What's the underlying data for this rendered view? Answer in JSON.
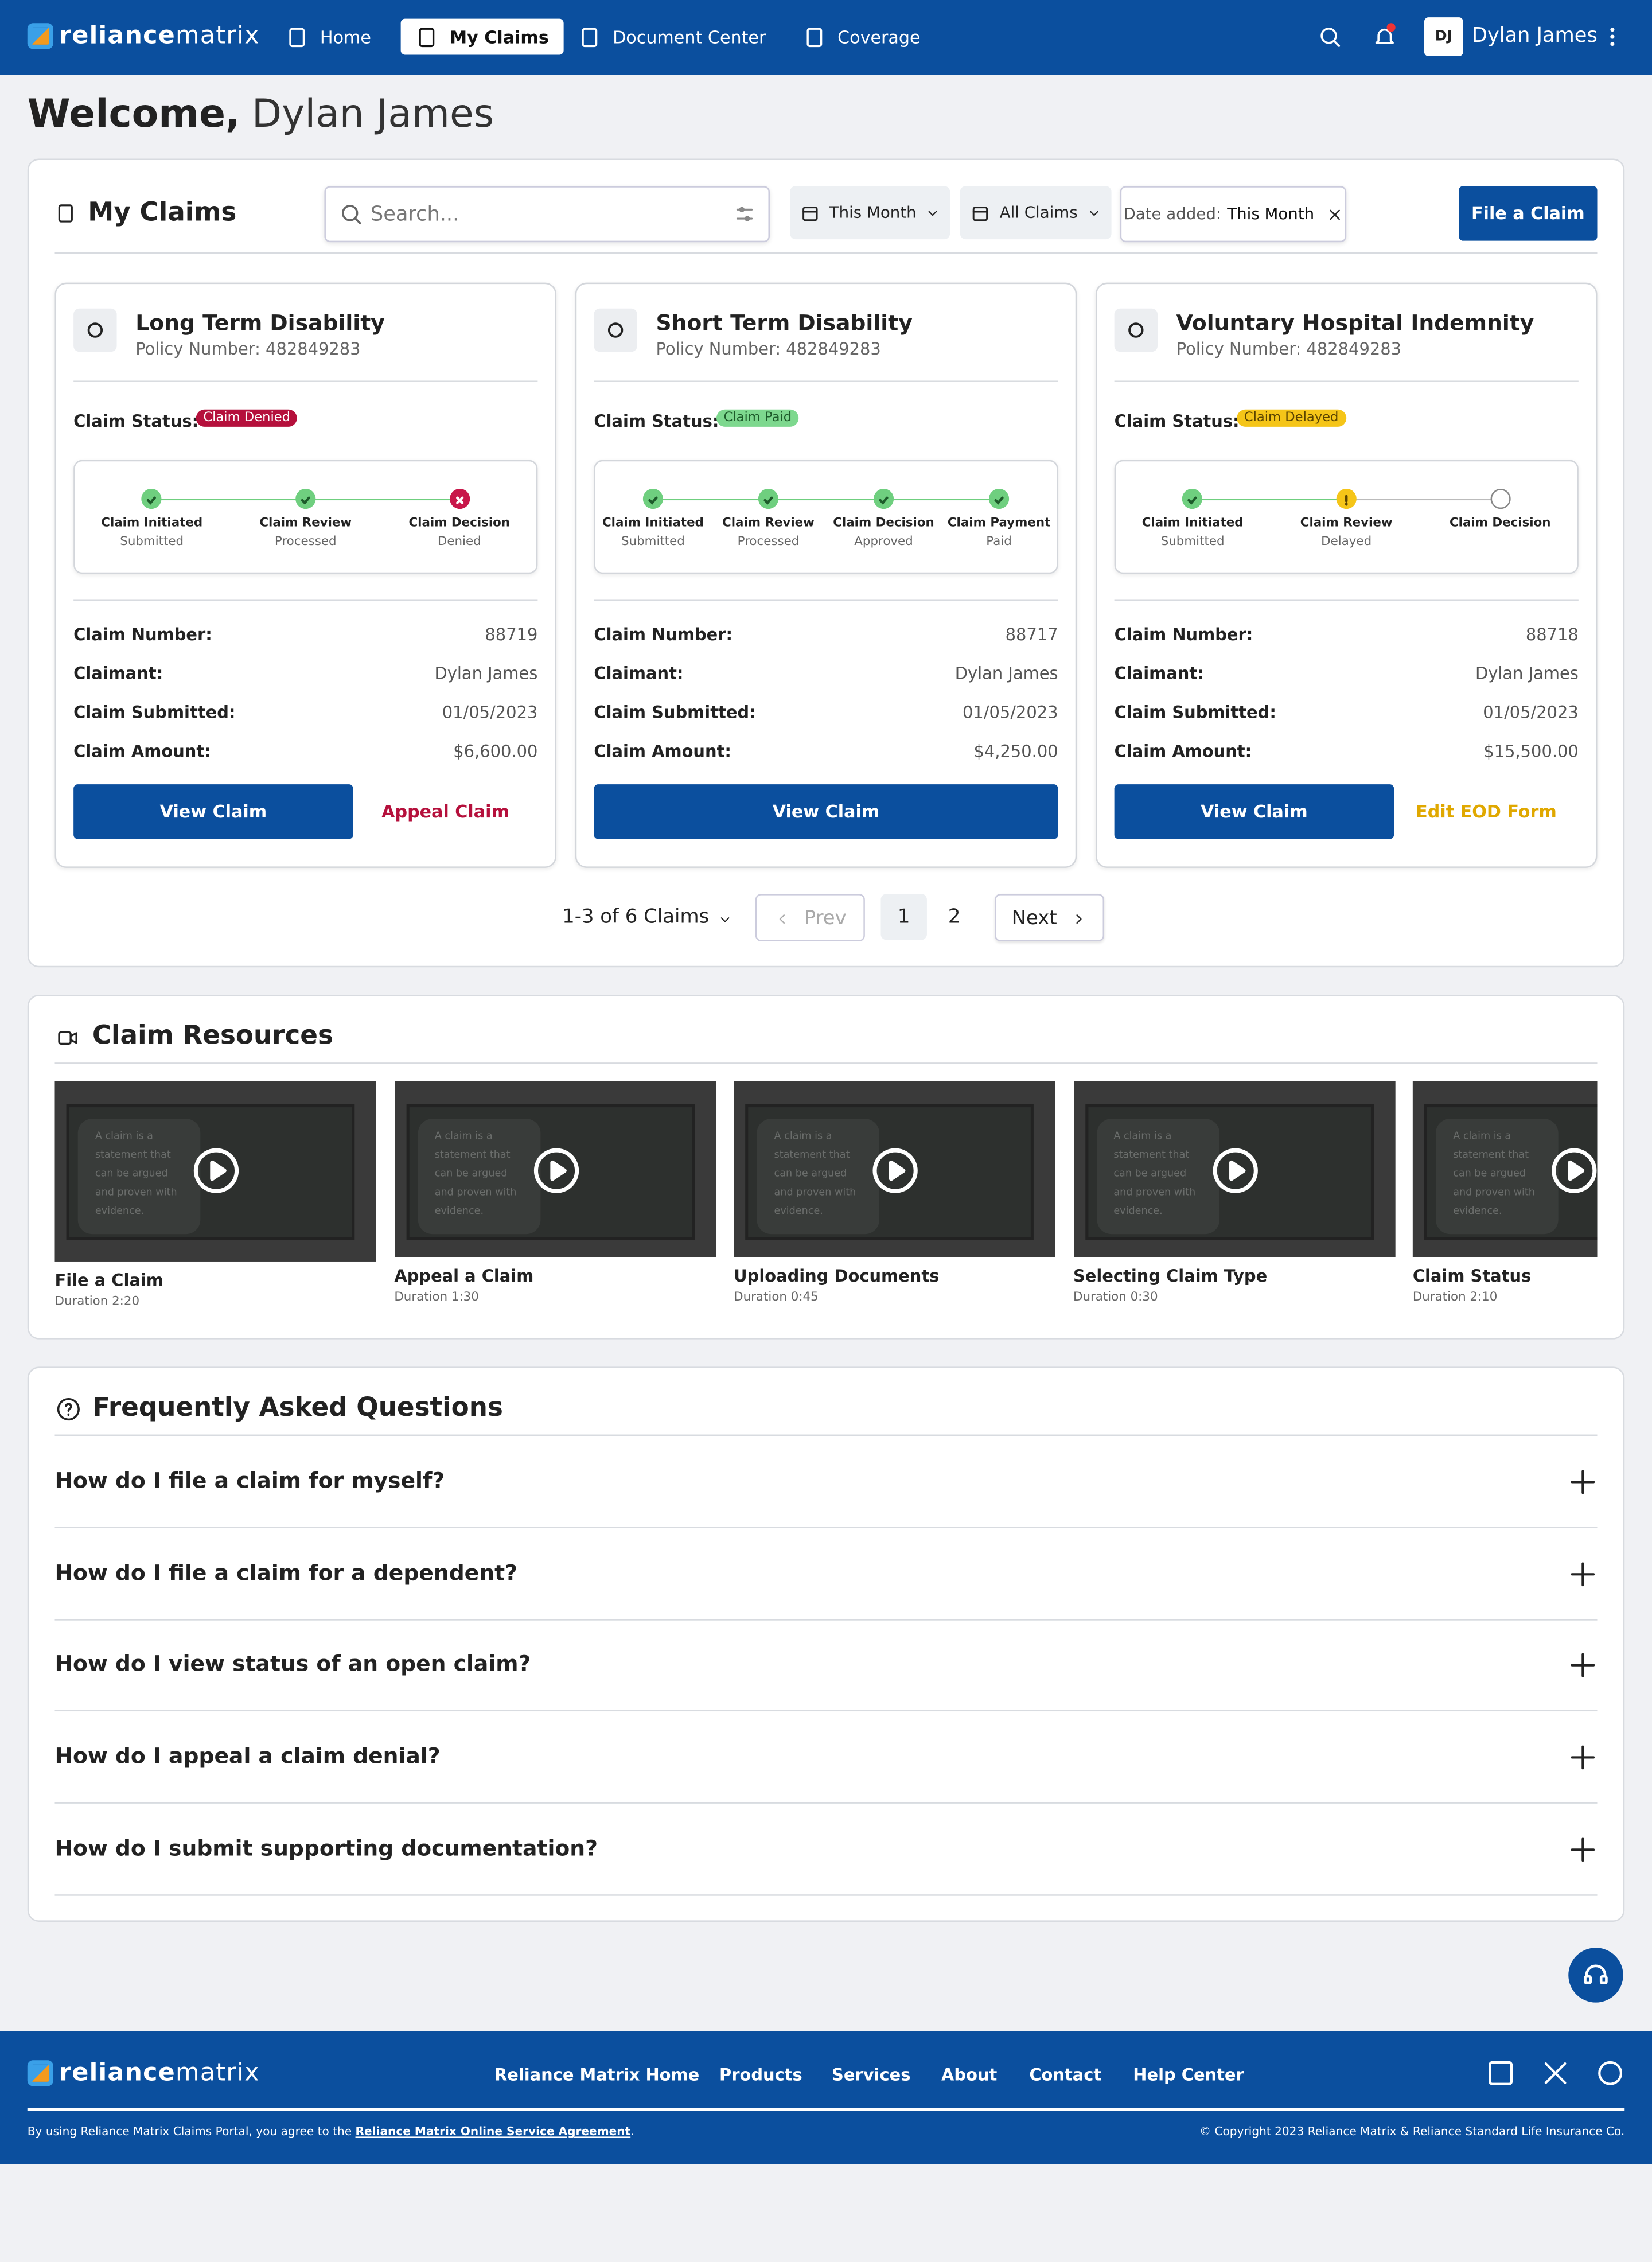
{
  "nav": {
    "brand_a": "reliance",
    "brand_b": "matrix",
    "links": [
      "Home",
      "My Claims",
      "Document Center",
      "Coverage"
    ],
    "user_initials": "DJ",
    "user_name": "Dylan James"
  },
  "welcome": {
    "greeting": "Welcome,",
    "name": "Dylan James"
  },
  "claims": {
    "title": "My Claims",
    "search_placeholder": "Search...",
    "filters": [
      "This Month",
      "All Claims"
    ],
    "chip_label": "Date added:",
    "chip_value": "This Month",
    "file_button": "File a Claim",
    "status_label": "Claim Status:",
    "fields": [
      "Claim Number:",
      "Claimant:",
      "Claim Submitted:",
      "Claim Amount:"
    ],
    "cards": [
      {
        "title": "Long Term Disability",
        "policy": "Policy Number: 482849283",
        "status": "Claim Denied",
        "status_color": "#b5103c",
        "status_text_color": "#ffffff",
        "steps": [
          {
            "name": "Claim Initiated",
            "state": "Submitted",
            "mark": "check"
          },
          {
            "name": "Claim Review",
            "state": "Processed",
            "mark": "check"
          },
          {
            "name": "Claim Decision",
            "state": "Denied",
            "mark": "x"
          }
        ],
        "details": [
          "88719",
          "Dylan James",
          "01/05/2023",
          "$6,600.00"
        ],
        "actions": [
          "View Claim",
          "Appeal Claim"
        ],
        "action_color": "#b5103c"
      },
      {
        "title": "Short Term Disability",
        "policy": "Policy Number: 482849283",
        "status": "Claim Paid",
        "status_color": "#7dd88e",
        "status_text_color": "#1d5b2a",
        "steps": [
          {
            "name": "Claim Initiated",
            "state": "Submitted",
            "mark": "check"
          },
          {
            "name": "Claim Review",
            "state": "Processed",
            "mark": "check"
          },
          {
            "name": "Claim Decision",
            "state": "Approved",
            "mark": "check"
          },
          {
            "name": "Claim Payment",
            "state": "Paid",
            "mark": "check"
          }
        ],
        "details": [
          "88717",
          "Dylan James",
          "01/05/2023",
          "$4,250.00"
        ],
        "actions": [
          "View Claim"
        ],
        "action_color": "#0b4f9e"
      },
      {
        "title": "Voluntary Hospital Indemnity",
        "policy": "Policy Number: 482849283",
        "status": "Claim Delayed",
        "status_color": "#f5c518",
        "status_text_color": "#5a4300",
        "steps": [
          {
            "name": "Claim Initiated",
            "state": "Submitted",
            "mark": "check"
          },
          {
            "name": "Claim Review",
            "state": "Delayed",
            "mark": "warn"
          },
          {
            "name": "Claim Decision",
            "mark": "none"
          }
        ],
        "details": [
          "88718",
          "Dylan James",
          "01/05/2023",
          "$15,500.00"
        ],
        "actions": [
          "View Claim",
          "Edit EOD Form"
        ],
        "action_color": "#e0a800"
      }
    ]
  },
  "pagination": {
    "summary": "1-3 of 6 Claims",
    "prev": "Prev",
    "pages": [
      "1",
      "2"
    ],
    "next": "Next"
  },
  "resources": {
    "title": "Claim Resources",
    "thumbnail_text": "A claim is a statement that can be argued and proven with evidence.",
    "videos": [
      {
        "title": "File a Claim",
        "duration": "Duration 2:20"
      },
      {
        "title": "Appeal a Claim",
        "duration": "Duration 1:30"
      },
      {
        "title": "Uploading Documents",
        "duration": "Duration 0:45"
      },
      {
        "title": "Selecting Claim Type",
        "duration": "Duration 0:30"
      },
      {
        "title": "Claim Status",
        "duration": "Duration 2:10"
      }
    ]
  },
  "faq": {
    "title": "Frequently Asked Questions",
    "questions": [
      "How do I file a claim for myself?",
      "How do I file a claim for a dependent?",
      "How do I view status of an open claim?",
      "How do I appeal a claim denial?",
      "How do I submit supporting documentation?"
    ]
  },
  "footer": {
    "brand_a": "reliance",
    "brand_b": "matrix",
    "links": [
      "Reliance Matrix Home",
      "Products",
      "Services",
      "About",
      "Contact",
      "Help Center"
    ],
    "legal_prefix": "By using Reliance Matrix Claims Portal, you agree to the",
    "legal_link": "Reliance Matrix Online Service Agreement",
    "legal_suffix": ".",
    "copyright": "© Copyright 2023 Reliance Matrix & Reliance Standard Life Insurance Co."
  }
}
